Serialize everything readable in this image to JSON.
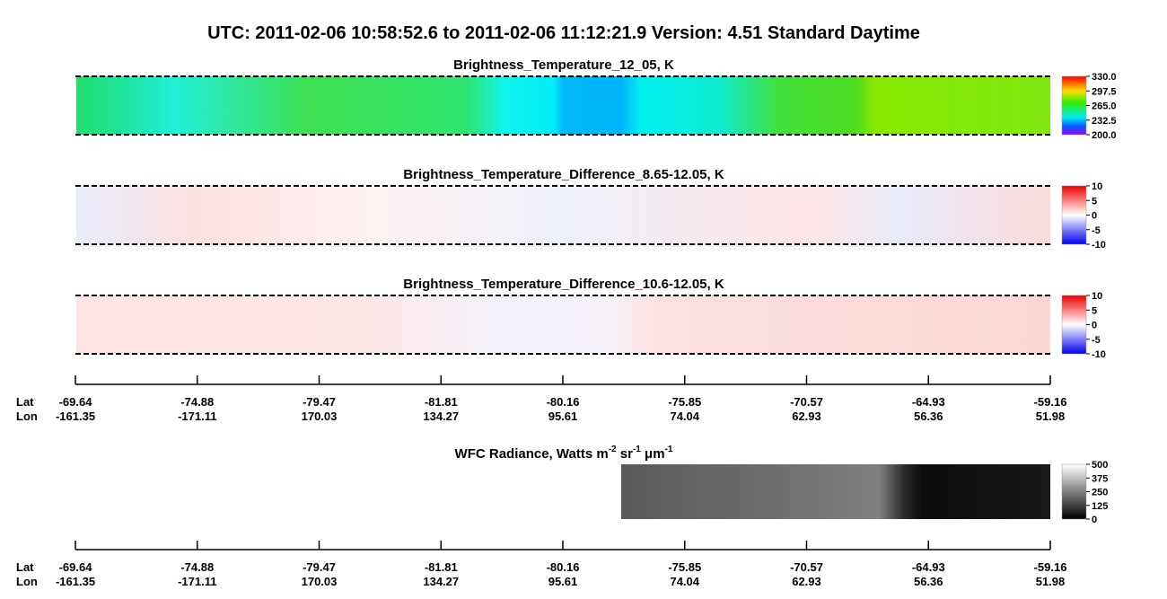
{
  "title": "UTC:  2011-02-06   10:58:52.6  to  2011-02-06   11:12:21.9    Version: 4.51  Standard Daytime",
  "panels": [
    {
      "title": "Brightness_Temperature_12_05, K",
      "colorbar": [
        "330.0",
        "297.5",
        "265.0",
        "232.5",
        "200.0"
      ]
    },
    {
      "title": "Brightness_Temperature_Difference_8.65-12.05, K",
      "colorbar": [
        "10",
        "5",
        "0",
        "-5",
        "-10"
      ]
    },
    {
      "title": "Brightness_Temperature_Difference_10.6-12.05, K",
      "colorbar": [
        "10",
        "5",
        "0",
        "-5",
        "-10"
      ]
    },
    {
      "title_parts": [
        "WFC Radiance, Watts m",
        "-2",
        " sr",
        "-1",
        " μm",
        "-1"
      ],
      "colorbar": [
        "500",
        "375",
        "250",
        "125",
        "0"
      ]
    }
  ],
  "axes": [
    {
      "lat_label": "Lat",
      "lon_label": "Lon",
      "lat": [
        "-69.64",
        "-74.88",
        "-79.47",
        "-81.81",
        "-80.16",
        "-75.85",
        "-70.57",
        "-64.93",
        "-59.16"
      ],
      "lon": [
        "-161.35",
        "-171.11",
        "170.03",
        "134.27",
        "95.61",
        "74.04",
        "62.93",
        "56.36",
        "51.98"
      ]
    },
    {
      "lat_label": "Lat",
      "lon_label": "Lon",
      "lat": [
        "-69.64",
        "-74.88",
        "-79.47",
        "-81.81",
        "-80.16",
        "-75.85",
        "-70.57",
        "-64.93",
        "-59.16"
      ],
      "lon": [
        "-161.35",
        "-171.11",
        "170.03",
        "134.27",
        "95.61",
        "74.04",
        "62.93",
        "56.36",
        "51.98"
      ]
    }
  ]
}
